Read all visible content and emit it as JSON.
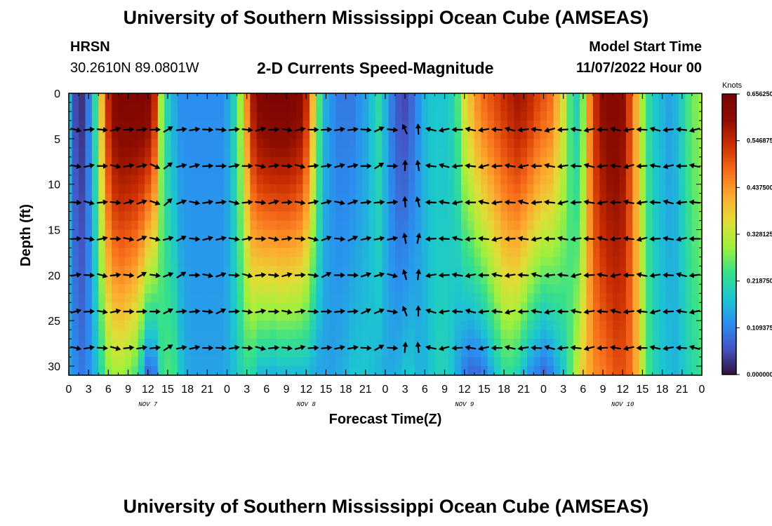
{
  "header": {
    "title": "University of Southern Mississippi Ocean Cube (AMSEAS)",
    "station": "HRSN",
    "coords": "30.2610N  89.0801W",
    "subtitle": "2-D Currents Speed-Magnitude",
    "model_start_label": "Model Start Time",
    "model_start_value": "11/07/2022 Hour 00"
  },
  "footer": {
    "title": "University of Southern Mississippi Ocean Cube (AMSEAS)"
  },
  "chart_data": {
    "type": "heatmap",
    "title": "2-D Currents Speed-Magnitude",
    "xlabel": "Forecast Time(Z)",
    "ylabel": "Depth (ft)",
    "x_range_hours": [
      0,
      96
    ],
    "y_range_ft": [
      0,
      31
    ],
    "x_tick_labels": [
      "0",
      "3",
      "6",
      "9",
      "12",
      "15",
      "18",
      "21",
      "0",
      "3",
      "6",
      "9",
      "12",
      "15",
      "18",
      "21",
      "0",
      "3",
      "6",
      "9",
      "12",
      "15",
      "18",
      "21",
      "0",
      "3",
      "6",
      "9",
      "12",
      "15",
      "18",
      "21",
      "0"
    ],
    "y_ticks": [
      0,
      5,
      10,
      15,
      20,
      25,
      30
    ],
    "y_tick_labels": [
      "0",
      "5",
      "10",
      "15",
      "20",
      "25",
      "30"
    ],
    "day_labels": [
      {
        "text": "NOV 7",
        "hour": 12
      },
      {
        "text": "NOV 8",
        "hour": 36
      },
      {
        "text": "NOV 9",
        "hour": 60
      },
      {
        "text": "NOV 10",
        "hour": 84
      }
    ],
    "colorbar": {
      "unit": "Knots",
      "min": 0.0,
      "max": 0.65625,
      "tick_values": [
        0.0,
        0.109375,
        0.21875,
        0.328125,
        0.4375,
        0.546875,
        0.65625
      ],
      "tick_labels": [
        "0.000000",
        "0.109375",
        "0.218750",
        "0.328125",
        "0.437500",
        "0.546875",
        "0.656250"
      ]
    },
    "speed_profile_hours": [
      0,
      1,
      2,
      3,
      4,
      5,
      6,
      7,
      8,
      9,
      10,
      11,
      12,
      13,
      14,
      15,
      16,
      17,
      18,
      19,
      20,
      21,
      22,
      23,
      24,
      25,
      26,
      27,
      28,
      29,
      30,
      31,
      32,
      33,
      34,
      35,
      36,
      37,
      38,
      39,
      40,
      41,
      42,
      43,
      44,
      45,
      46,
      47,
      48,
      49,
      50,
      51,
      52,
      53,
      54,
      55,
      56,
      57,
      58,
      59,
      60,
      61,
      62,
      63,
      64,
      65,
      66,
      67,
      68,
      69,
      70,
      71,
      72,
      73,
      74,
      75,
      76,
      77,
      78,
      79,
      80,
      81,
      82,
      83,
      84,
      85,
      86,
      87,
      88,
      89,
      90,
      91,
      92,
      93,
      94,
      95,
      96
    ],
    "speed_surface_knots": [
      0.16,
      0.05,
      0.03,
      0.1,
      0.22,
      0.4,
      0.55,
      0.62,
      0.64,
      0.64,
      0.64,
      0.64,
      0.63,
      0.55,
      0.3,
      0.2,
      0.15,
      0.12,
      0.12,
      0.12,
      0.12,
      0.12,
      0.12,
      0.12,
      0.14,
      0.2,
      0.3,
      0.45,
      0.58,
      0.63,
      0.64,
      0.65,
      0.65,
      0.65,
      0.64,
      0.62,
      0.55,
      0.4,
      0.25,
      0.15,
      0.12,
      0.1,
      0.1,
      0.1,
      0.12,
      0.14,
      0.18,
      0.22,
      0.16,
      0.1,
      0.06,
      0.05,
      0.08,
      0.12,
      0.16,
      0.18,
      0.18,
      0.18,
      0.2,
      0.25,
      0.35,
      0.4,
      0.45,
      0.48,
      0.5,
      0.52,
      0.54,
      0.56,
      0.58,
      0.57,
      0.55,
      0.52,
      0.5,
      0.48,
      0.42,
      0.35,
      0.25,
      0.2,
      0.28,
      0.45,
      0.55,
      0.6,
      0.62,
      0.62,
      0.6,
      0.52,
      0.42,
      0.3,
      0.22,
      0.18,
      0.16,
      0.14,
      0.16,
      0.2,
      0.25,
      0.28,
      0.3
    ],
    "speed_bottom_knots": [
      0.14,
      0.12,
      0.1,
      0.12,
      0.16,
      0.22,
      0.28,
      0.3,
      0.3,
      0.28,
      0.25,
      0.18,
      0.08,
      0.1,
      0.22,
      0.25,
      0.24,
      0.18,
      0.15,
      0.14,
      0.14,
      0.14,
      0.14,
      0.14,
      0.15,
      0.17,
      0.2,
      0.22,
      0.2,
      0.16,
      0.16,
      0.15,
      0.16,
      0.16,
      0.16,
      0.16,
      0.16,
      0.15,
      0.14,
      0.14,
      0.14,
      0.15,
      0.16,
      0.18,
      0.18,
      0.18,
      0.17,
      0.16,
      0.15,
      0.15,
      0.16,
      0.18,
      0.18,
      0.16,
      0.16,
      0.18,
      0.2,
      0.2,
      0.18,
      0.14,
      0.1,
      0.08,
      0.08,
      0.1,
      0.14,
      0.18,
      0.22,
      0.22,
      0.2,
      0.16,
      0.12,
      0.1,
      0.08,
      0.1,
      0.14,
      0.18,
      0.25,
      0.32,
      0.38,
      0.42,
      0.45,
      0.46,
      0.48,
      0.5,
      0.5,
      0.48,
      0.42,
      0.32,
      0.24,
      0.2,
      0.18,
      0.17,
      0.16,
      0.18,
      0.2,
      0.22,
      0.24
    ],
    "vector_depths_ft": [
      4,
      8,
      12,
      16,
      20,
      24,
      28
    ],
    "vector_hours": [
      1,
      3,
      5,
      7,
      9,
      11,
      13,
      15,
      17,
      19,
      21,
      23,
      25,
      27,
      29,
      31,
      33,
      35,
      37,
      39,
      41,
      43,
      45,
      47,
      49,
      51,
      53,
      55,
      57,
      59,
      61,
      63,
      65,
      67,
      69,
      71,
      73,
      75,
      77,
      79,
      81,
      83,
      85,
      87,
      89,
      91,
      93,
      95
    ],
    "direction_degrees_math": [
      0,
      0,
      0,
      0,
      0,
      15,
      350,
      30,
      20,
      0,
      0,
      10,
      0,
      0,
      0,
      0,
      0,
      0,
      0,
      15,
      0,
      10,
      10,
      20,
      0,
      100,
      90,
      175,
      180,
      180,
      180,
      180,
      180,
      180,
      180,
      180,
      180,
      180,
      180,
      180,
      180,
      180,
      180,
      180,
      180,
      180,
      180,
      180
    ]
  },
  "colors": {
    "scale": [
      "#30123b",
      "#4454c4",
      "#2b8ef0",
      "#1cc6d0",
      "#37e08a",
      "#9ef03d",
      "#e1dd37",
      "#fcab2f",
      "#f66b19",
      "#cc2f03",
      "#8e0d00",
      "#7a0403"
    ],
    "arrow": "#000000",
    "frame": "#000000"
  }
}
